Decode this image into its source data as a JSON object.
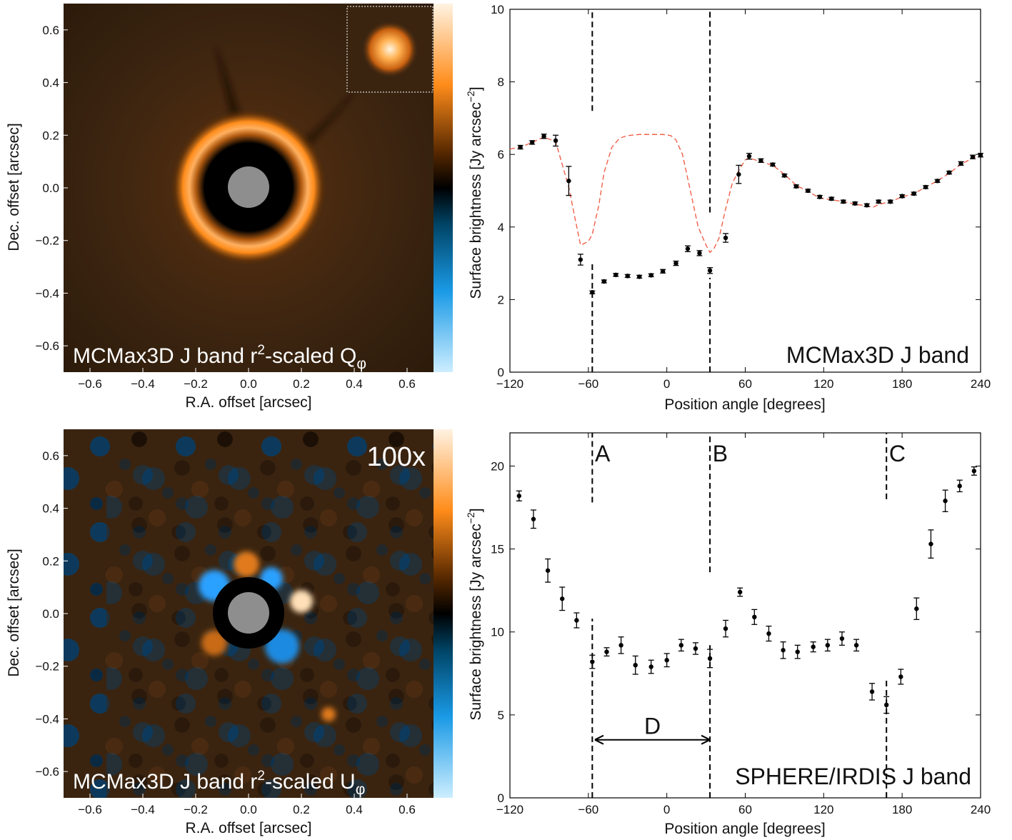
{
  "images": [
    {
      "id": "top-left",
      "label": "MCMax3D J band r",
      "label_sup": "2",
      "label_rest": "-scaled Q",
      "label_sub": "φ",
      "xlabel": "R.A. offset [arcsec]",
      "ylabel": "Dec. offset [arcsec]",
      "xticks": [
        "−0.6",
        "−0.4",
        "−0.2",
        "0.0",
        "0.2",
        "0.4",
        "0.6"
      ],
      "yticks": [
        "0.6",
        "0.4",
        "0.2",
        "0.0",
        "−0.2",
        "−0.4",
        "−0.6"
      ],
      "colormap": [
        "#fff2e0",
        "#ff8c1a",
        "#000000",
        "#0a80c8",
        "#c8eaff"
      ]
    },
    {
      "id": "bottom-left",
      "label": "MCMax3D J band r",
      "label_sup": "2",
      "label_rest": "-scaled U",
      "label_sub": "φ",
      "scale_label": "100x",
      "xlabel": "R.A. offset [arcsec]",
      "ylabel": "Dec. offset [arcsec]",
      "xticks": [
        "−0.6",
        "−0.4",
        "−0.2",
        "0.0",
        "0.2",
        "0.4",
        "0.6"
      ],
      "yticks": [
        "0.6",
        "0.4",
        "0.2",
        "0.0",
        "−0.2",
        "−0.4",
        "−0.6"
      ]
    }
  ],
  "chart_data": [
    {
      "type": "scatter",
      "id": "top-right",
      "annotation": "MCMax3D J band",
      "xlabel": "Position angle [degrees]",
      "ylabel": "Surface brightness [Jy arcsec",
      "ylabel_sup": "−2",
      "ylabel_end": "]",
      "xlim": [
        -120,
        240
      ],
      "ylim": [
        0,
        10
      ],
      "xticks": [
        "−120",
        "−60",
        "0",
        "60",
        "120",
        "180",
        "240"
      ],
      "xtick_values": [
        -120,
        -60,
        0,
        60,
        120,
        180,
        240
      ],
      "yticks": [
        "0",
        "2",
        "4",
        "6",
        "8",
        "10"
      ],
      "ytick_values": [
        0,
        2,
        4,
        6,
        8,
        10
      ],
      "vlines": [
        -57,
        33
      ],
      "vline_gaps": [
        [
          3.0,
          7.2
        ],
        [
          2.6,
          4.4
        ]
      ],
      "points": {
        "x": [
          -112,
          -103,
          -94,
          -85,
          -75,
          -66,
          -57,
          -48,
          -39,
          -30,
          -21,
          -12,
          -3,
          7,
          16,
          25,
          33,
          45,
          55,
          63,
          72,
          81,
          90,
          99,
          108,
          117,
          126,
          135,
          144,
          153,
          162,
          171,
          180,
          189,
          198,
          207,
          216,
          225,
          234,
          240
        ],
        "y": [
          6.2,
          6.33,
          6.5,
          6.38,
          5.27,
          3.1,
          2.2,
          2.5,
          2.68,
          2.65,
          2.63,
          2.67,
          2.78,
          3.0,
          3.4,
          3.28,
          2.8,
          3.7,
          5.45,
          5.95,
          5.83,
          5.72,
          5.42,
          5.12,
          5.0,
          4.83,
          4.78,
          4.7,
          4.65,
          4.6,
          4.7,
          4.7,
          4.85,
          4.92,
          5.1,
          5.27,
          5.5,
          5.75,
          5.93,
          5.98
        ],
        "err": [
          0.05,
          0.05,
          0.06,
          0.15,
          0.4,
          0.15,
          0.04,
          0.04,
          0.04,
          0.04,
          0.04,
          0.04,
          0.05,
          0.06,
          0.08,
          0.07,
          0.08,
          0.12,
          0.25,
          0.08,
          0.05,
          0.04,
          0.04,
          0.04,
          0.04,
          0.04,
          0.04,
          0.04,
          0.04,
          0.04,
          0.04,
          0.04,
          0.04,
          0.04,
          0.04,
          0.04,
          0.04,
          0.05,
          0.05,
          0.05
        ]
      },
      "model_line": {
        "color": "#f0604a",
        "x": [
          -120,
          -112,
          -103,
          -94,
          -85,
          -75,
          -70,
          -66,
          -60,
          -57,
          -52,
          -48,
          -42,
          -36,
          -30,
          -21,
          -12,
          -3,
          3,
          7,
          12,
          18,
          24,
          30,
          33,
          36,
          40,
          45,
          50,
          55,
          60,
          63,
          72,
          81,
          90,
          99,
          108,
          117,
          126,
          135,
          144,
          153,
          158,
          162,
          171,
          180,
          189,
          198,
          207,
          216,
          225,
          234,
          240
        ],
        "y": [
          6.15,
          6.2,
          6.33,
          6.48,
          6.35,
          5.1,
          4.2,
          3.5,
          3.6,
          3.8,
          4.6,
          5.5,
          6.2,
          6.45,
          6.52,
          6.55,
          6.55,
          6.55,
          6.52,
          6.4,
          6.0,
          5.0,
          4.0,
          3.5,
          3.3,
          3.4,
          3.7,
          4.5,
          5.2,
          5.55,
          5.85,
          5.9,
          5.8,
          5.7,
          5.45,
          5.15,
          4.98,
          4.8,
          4.75,
          4.7,
          4.63,
          4.58,
          4.55,
          4.62,
          4.7,
          4.83,
          4.92,
          5.1,
          5.27,
          5.48,
          5.73,
          5.9,
          6.0
        ]
      }
    },
    {
      "type": "scatter",
      "id": "bottom-right",
      "annotation": "SPHERE/IRDIS J band",
      "region_labels": [
        {
          "text": "A",
          "x": -55
        },
        {
          "text": "B",
          "x": 35
        },
        {
          "text": "C",
          "x": 170
        }
      ],
      "span_label": "D",
      "span": [
        -55,
        33
      ],
      "span_y": 3.5,
      "xlabel": "Position angle [degrees]",
      "ylabel": "Surface brightness [Jy arcsec",
      "ylabel_sup": "−2",
      "ylabel_end": "]",
      "xlim": [
        -120,
        240
      ],
      "ylim": [
        0,
        22
      ],
      "xticks": [
        "−120",
        "−60",
        "0",
        "60",
        "120",
        "180",
        "240"
      ],
      "xtick_values": [
        -120,
        -60,
        0,
        60,
        120,
        180,
        240
      ],
      "yticks": [
        "0",
        "5",
        "10",
        "15",
        "20"
      ],
      "ytick_values": [
        0,
        5,
        10,
        15,
        20
      ],
      "vlines": [
        -57,
        33,
        168
      ],
      "vline_gaps": [
        [
          10.8,
          17.8
        ],
        [
          9.2,
          13.6
        ],
        [
          7.2,
          18.0
        ]
      ],
      "points": {
        "x": [
          -113,
          -102,
          -91,
          -80,
          -69,
          -57,
          -46,
          -35,
          -24,
          -12,
          0,
          11,
          22,
          33,
          45,
          56,
          67,
          78,
          89,
          100,
          112,
          123,
          134,
          145,
          157,
          168,
          179,
          191,
          202,
          213,
          224,
          235
        ],
        "y": [
          18.2,
          16.8,
          13.7,
          12.0,
          10.7,
          8.2,
          8.8,
          9.2,
          8.0,
          7.9,
          8.3,
          9.2,
          9.0,
          8.4,
          10.2,
          12.4,
          10.9,
          9.9,
          8.9,
          8.8,
          9.1,
          9.2,
          9.6,
          9.2,
          6.4,
          5.6,
          7.3,
          11.4,
          15.3,
          17.9,
          18.8,
          19.7
        ],
        "err": [
          0.3,
          0.55,
          0.7,
          0.7,
          0.45,
          0.4,
          0.25,
          0.5,
          0.55,
          0.4,
          0.4,
          0.35,
          0.35,
          0.55,
          0.5,
          0.25,
          0.45,
          0.45,
          0.5,
          0.4,
          0.3,
          0.35,
          0.4,
          0.35,
          0.5,
          0.5,
          0.45,
          0.65,
          0.85,
          0.65,
          0.35,
          0.25
        ]
      }
    }
  ]
}
